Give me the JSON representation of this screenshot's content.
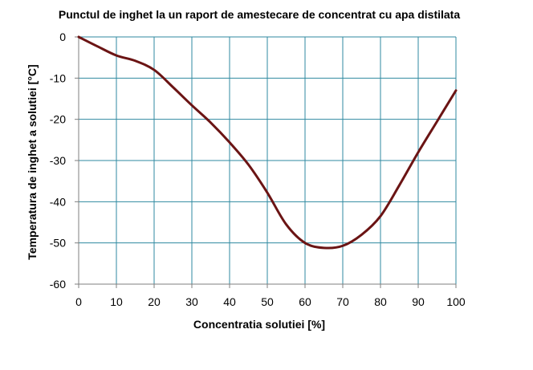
{
  "chart_data": {
    "type": "line",
    "title": "Punctul de inghet la un raport de amestecare de concentrat cu apa distilata",
    "xlabel": "Concentratia solutiei [%]",
    "ylabel": "Temperatura de inghet a solutiei [°C]",
    "xlim": [
      0,
      100
    ],
    "ylim": [
      -60,
      0
    ],
    "x_ticks": [
      0,
      10,
      20,
      30,
      40,
      50,
      60,
      70,
      80,
      90,
      100
    ],
    "y_ticks": [
      0,
      -10,
      -20,
      -30,
      -40,
      -50,
      -60
    ],
    "x_tick_labels": [
      "0",
      "10",
      "20",
      "30",
      "40",
      "50",
      "60",
      "70",
      "80",
      "90",
      "100"
    ],
    "y_tick_labels": [
      "0",
      "-10",
      "-20",
      "-30",
      "-40",
      "-50",
      "-60"
    ],
    "grid": true,
    "series": [
      {
        "color": "#6b1414",
        "x": [
          0,
          5,
          10,
          15,
          20,
          25,
          30,
          35,
          40,
          45,
          50,
          55,
          60,
          65,
          70,
          75,
          80,
          85,
          90,
          95,
          100
        ],
        "y": [
          0,
          -2.3,
          -4.5,
          -5.8,
          -8,
          -12.2,
          -16.6,
          -20.8,
          -25.6,
          -31,
          -37.8,
          -45.5,
          -50,
          -51.2,
          -50.7,
          -48,
          -43.5,
          -36,
          -28,
          -20.5,
          -13
        ]
      }
    ]
  },
  "colors": {
    "grid": "#2f8aa0",
    "axis": "#7f7f7f",
    "line": "#6b1414"
  }
}
